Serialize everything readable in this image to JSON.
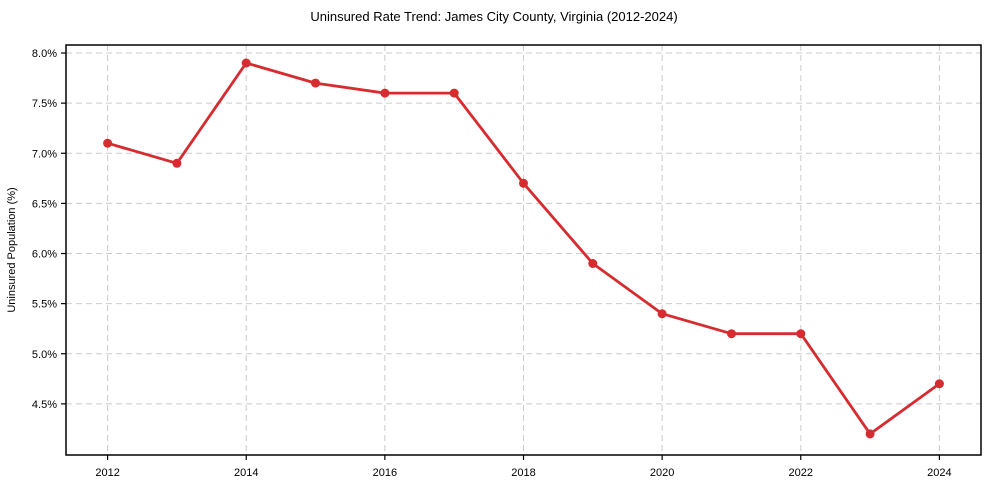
{
  "chart_data": {
    "type": "line",
    "title": "Uninsured Rate Trend: James City County, Virginia (2012-2024)",
    "xlabel": "",
    "ylabel": "Uninsured Population (%)",
    "x": [
      2012,
      2013,
      2014,
      2015,
      2016,
      2017,
      2018,
      2019,
      2020,
      2021,
      2022,
      2023,
      2024
    ],
    "values": [
      7.1,
      6.9,
      7.9,
      7.7,
      7.6,
      7.6,
      6.7,
      5.9,
      5.4,
      5.2,
      5.2,
      4.2,
      4.7
    ],
    "xlim": [
      2011.4,
      2024.6
    ],
    "ylim": [
      3.99,
      8.08
    ],
    "xticks": [
      2012,
      2014,
      2016,
      2018,
      2020,
      2022,
      2024
    ],
    "xtick_labels": [
      "2012",
      "2014",
      "2016",
      "2018",
      "2020",
      "2022",
      "2024"
    ],
    "yticks": [
      4.5,
      5.0,
      5.5,
      6.0,
      6.5,
      7.0,
      7.5,
      8.0
    ],
    "ytick_labels": [
      "4.5%",
      "5.0%",
      "5.5%",
      "6.0%",
      "6.5%",
      "7.0%",
      "7.5%",
      "8.0%"
    ],
    "grid": true,
    "legend": false,
    "line_color": "#d62b2f",
    "grid_color": "#cccccc",
    "axis_color": "#000000",
    "text_color": "#000000",
    "background_color": "#ffffff"
  }
}
